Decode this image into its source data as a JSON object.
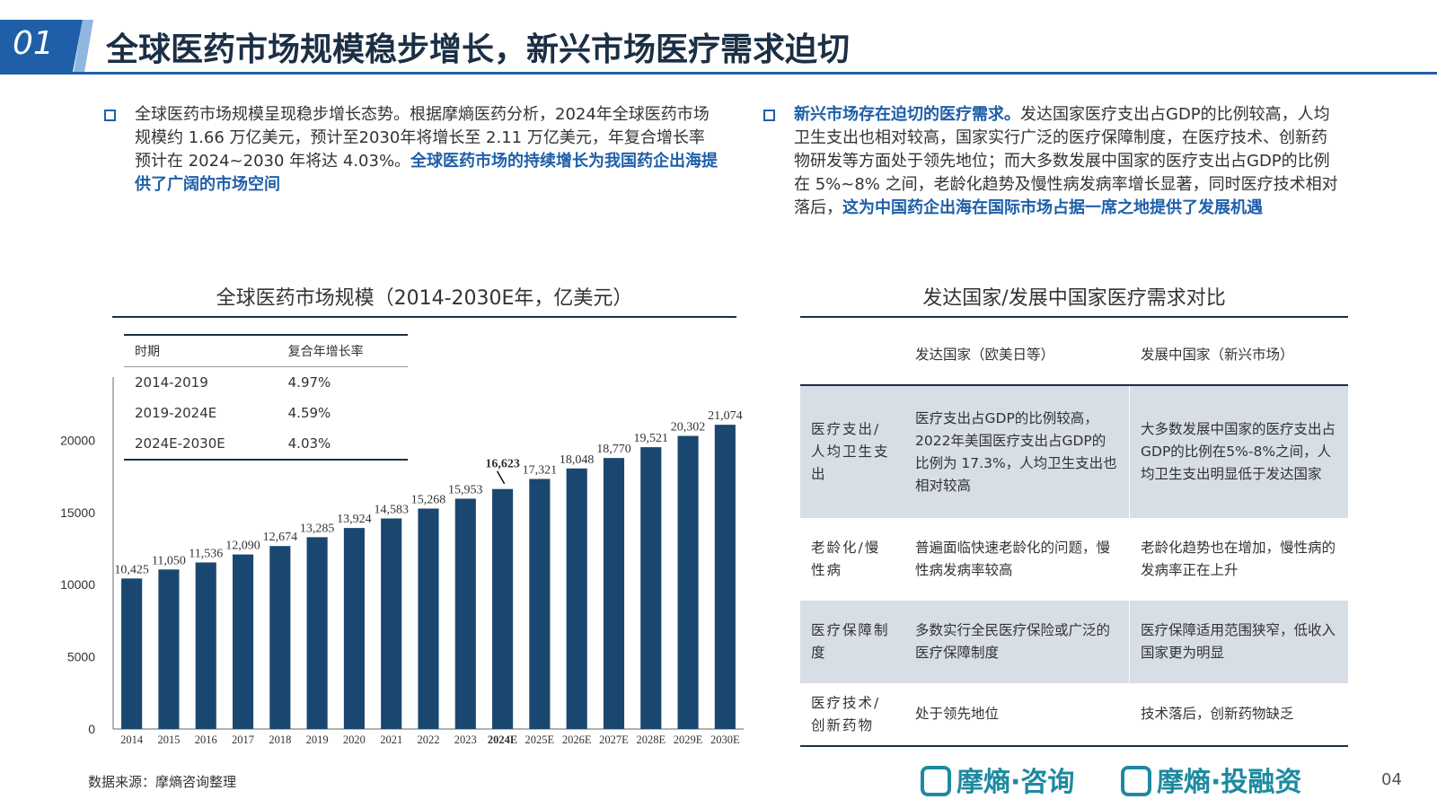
{
  "header": {
    "number": "01",
    "title": "全球医药市场规模稳步增长，新兴市场医疗需求迫切"
  },
  "left_bullet": {
    "text": "全球医药市场规模呈现稳步增长态势。根据摩熵医药分析，2024年全球医药市场规模约 1.66 万亿美元，预计至2030年将增长至 2.11 万亿美元，年复合增长率预计在 2024~2030 年将达 4.03%。",
    "highlight": "全球医药市场的持续增长为我国药企出海提供了广阔的市场空间"
  },
  "right_bullet": {
    "highlight_lead": "新兴市场存在迫切的医疗需求。",
    "text": "发达国家医疗支出占GDP的比例较高，人均卫生支出也相对较高，国家实行广泛的医疗保障制度，在医疗技术、创新药物研发等方面处于领先地位；而大多数发展中国家的医疗支出占GDP的比例在 5%~8% 之间，老龄化趋势及慢性病发病率增长显著，同时医疗技术相对落后，",
    "highlight": "这为中国药企出海在国际市场占据一席之地提供了发展机遇"
  },
  "chart_title": "全球医药市场规模（2014-2030E年，亿美元）",
  "rate_table": {
    "headers": [
      "时期",
      "复合年增长率"
    ],
    "rows": [
      [
        "2014-2019",
        "4.97%"
      ],
      [
        "2019-2024E",
        "4.59%"
      ],
      [
        "2024E-2030E",
        "4.03%"
      ]
    ]
  },
  "chart_data": {
    "type": "bar",
    "categories": [
      "2014",
      "2015",
      "2016",
      "2017",
      "2018",
      "2019",
      "2020",
      "2021",
      "2022",
      "2023",
      "2024E",
      "2025E",
      "2026E",
      "2027E",
      "2028E",
      "2029E",
      "2030E"
    ],
    "values": [
      10425,
      11050,
      11536,
      12090,
      12674,
      13285,
      13924,
      14583,
      15268,
      15953,
      16623,
      17321,
      18048,
      18770,
      19521,
      20302,
      21074
    ],
    "value_labels": [
      "10,425",
      "11,050",
      "11,536",
      "12,090",
      "12,674",
      "13,285",
      "13,924",
      "14,583",
      "15,268",
      "15,953",
      "16,623",
      "17,321",
      "18,048",
      "18,770",
      "19,521",
      "20,302",
      "21,074"
    ],
    "highlight_index": 10,
    "yticks": [
      "0",
      "5000",
      "10000",
      "15000",
      "20000"
    ],
    "ylim": [
      0,
      25000
    ],
    "bar_color": "#1a4770"
  },
  "compare": {
    "title": "发达国家/发展中国家医疗需求对比",
    "headers": [
      "",
      "发达国家（欧美日等）",
      "发展中国家（新兴市场）"
    ],
    "rows": [
      [
        "医疗支出/人均卫生支出",
        "医疗支出占GDP的比例较高，2022年美国医疗支出占GDP的比例为 17.3%，人均卫生支出也相对较高",
        "大多数发展中国家的医疗支出占GDP的比例在5%-8%之间，人均卫生支出明显低于发达国家"
      ],
      [
        "老龄化/慢性病",
        "普遍面临快速老龄化的问题，慢性病发病率较高",
        "老龄化趋势也在增加，慢性病的发病率正在上升"
      ],
      [
        "医疗保障制度",
        "多数实行全民医疗保险或广泛的医疗保障制度",
        "医疗保障适用范围狭窄，低收入国家更为明显"
      ],
      [
        "医疗技术/创新药物",
        "处于领先地位",
        "技术落后，创新药物缺乏"
      ]
    ]
  },
  "footer": {
    "source": "数据来源：摩熵咨询整理",
    "logo1": "摩熵·咨询",
    "logo2": "摩熵·投融资",
    "page": "04"
  }
}
